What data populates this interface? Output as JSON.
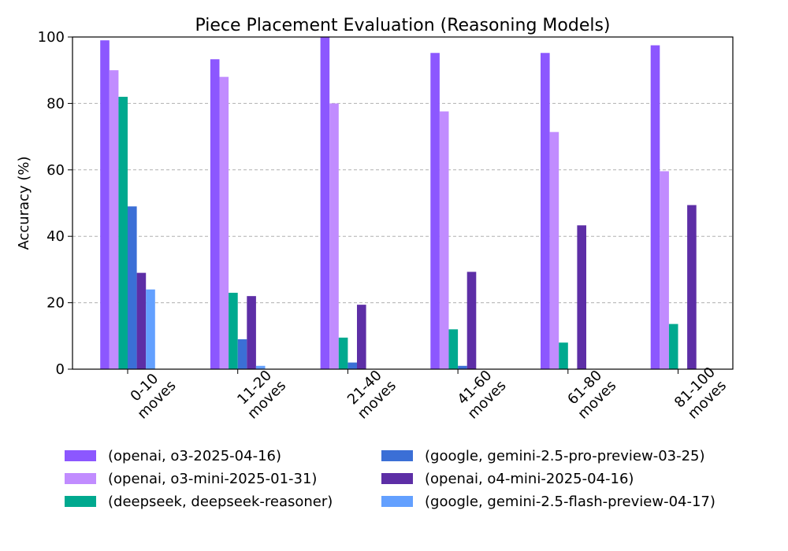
{
  "chart_data": {
    "type": "bar",
    "title": "Piece Placement Evaluation (Reasoning Models)",
    "xlabel": "",
    "ylabel": "Accuracy (%)",
    "ylim": [
      0,
      100
    ],
    "yticks": [
      0,
      20,
      40,
      60,
      80,
      100
    ],
    "grid": "y-dashed",
    "legend_placement": "bottom",
    "categories": [
      [
        "0-10",
        "moves"
      ],
      [
        "11-20",
        "moves"
      ],
      [
        "21-40",
        "moves"
      ],
      [
        "41-60",
        "moves"
      ],
      [
        "61-80",
        "moves"
      ],
      [
        "81-100",
        "moves"
      ]
    ],
    "series": [
      {
        "name": "(openai, o3-2025-04-16)",
        "color": "#8c57ff",
        "values": [
          99,
          93.3,
          100,
          95.2,
          95.2,
          97.5
        ]
      },
      {
        "name": "(openai, o3-mini-2025-01-31)",
        "color": "#c18cff",
        "values": [
          90,
          88,
          80,
          77.6,
          71.4,
          59.6
        ]
      },
      {
        "name": "(deepseek, deepseek-reasoner)",
        "color": "#00a98f",
        "values": [
          82,
          23,
          9.5,
          12,
          8,
          13.6
        ]
      },
      {
        "name": "(google, gemini-2.5-pro-preview-03-25)",
        "color": "#3b6fd6",
        "values": [
          49,
          9,
          2,
          1,
          0,
          0
        ]
      },
      {
        "name": "(openai, o4-mini-2025-04-16)",
        "color": "#5d2ea6",
        "values": [
          29,
          22,
          19.4,
          29.3,
          43.3,
          49.4
        ]
      },
      {
        "name": "(google, gemini-2.5-flash-preview-04-17)",
        "color": "#63a0ff",
        "values": [
          24,
          1,
          0,
          0,
          0,
          0
        ]
      }
    ]
  }
}
